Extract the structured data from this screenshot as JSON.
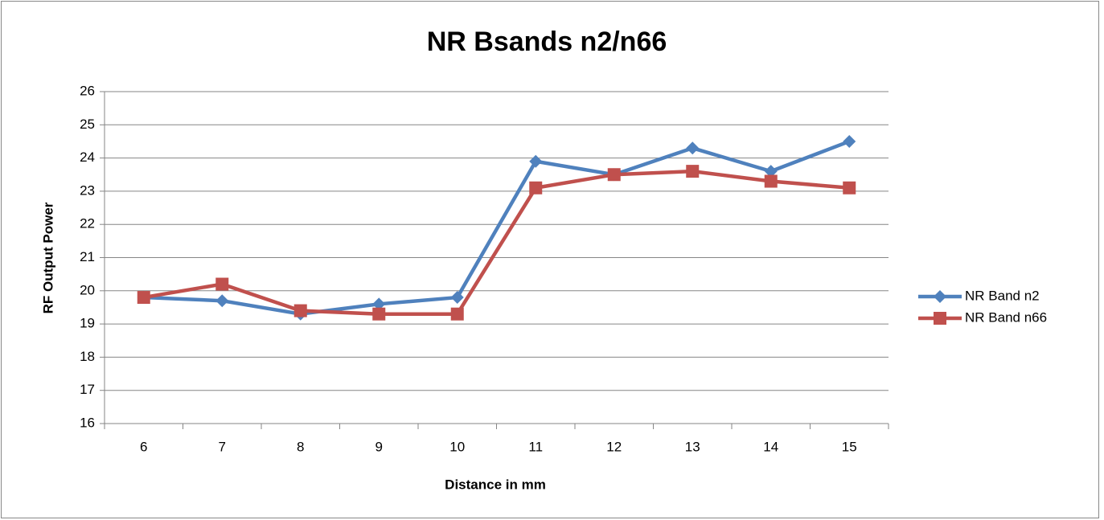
{
  "chart_data": {
    "type": "line",
    "title": "NR Bsands n2/n66",
    "x_label": "Distance in mm",
    "y_label": "RF Output Power",
    "categories": [
      "6",
      "7",
      "8",
      "9",
      "10",
      "11",
      "12",
      "13",
      "14",
      "15"
    ],
    "series": [
      {
        "name": "NR Band n2",
        "color": "#4f81bd",
        "marker": "diamond",
        "values": [
          19.8,
          19.7,
          19.3,
          19.6,
          19.8,
          23.9,
          23.5,
          24.3,
          23.6,
          24.5
        ]
      },
      {
        "name": "NR Band n66",
        "color": "#c0504d",
        "marker": "square",
        "values": [
          19.8,
          20.2,
          19.4,
          19.3,
          19.3,
          23.1,
          23.5,
          23.6,
          23.3,
          23.1
        ]
      }
    ],
    "ylim": [
      16,
      26
    ],
    "yticks": [
      16,
      17,
      18,
      19,
      20,
      21,
      22,
      23,
      24,
      25,
      26
    ],
    "grid": true,
    "legend": "right"
  }
}
